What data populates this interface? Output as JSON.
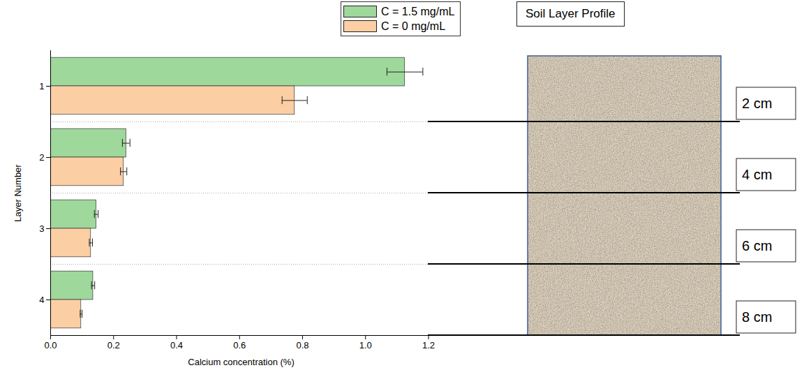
{
  "chart_data": {
    "type": "bar",
    "orientation": "horizontal",
    "categories": [
      "1",
      "2",
      "3",
      "4"
    ],
    "x_label": "Calcium concentration (%)",
    "y_label": "Layer Number",
    "xlim": [
      0,
      1.21
    ],
    "xticks": [
      {
        "value": 0,
        "label": "0.0"
      },
      0.2,
      0.4,
      0.6,
      0.8,
      {
        "value": 1,
        "label": "1.0"
      },
      1.2
    ],
    "grid": false,
    "legend": "top-right",
    "series": [
      {
        "name": "C = 1.5 mg/mL",
        "color": "#9fd89b",
        "values": [
          1.125,
          0.24,
          0.145,
          0.135
        ],
        "errors": [
          0.057,
          0.012,
          0.006,
          0.005
        ]
      },
      {
        "name": "C = 0 mg/mL",
        "color": "#fbcea4",
        "values": [
          0.775,
          0.232,
          0.128,
          0.097
        ],
        "errors": [
          0.04,
          0.01,
          0.005,
          0.003
        ]
      }
    ]
  },
  "soil_profile": {
    "title": "Soil Layer Profile",
    "depth_labels": [
      "2 cm",
      "4 cm",
      "6 cm",
      "8 cm"
    ]
  }
}
